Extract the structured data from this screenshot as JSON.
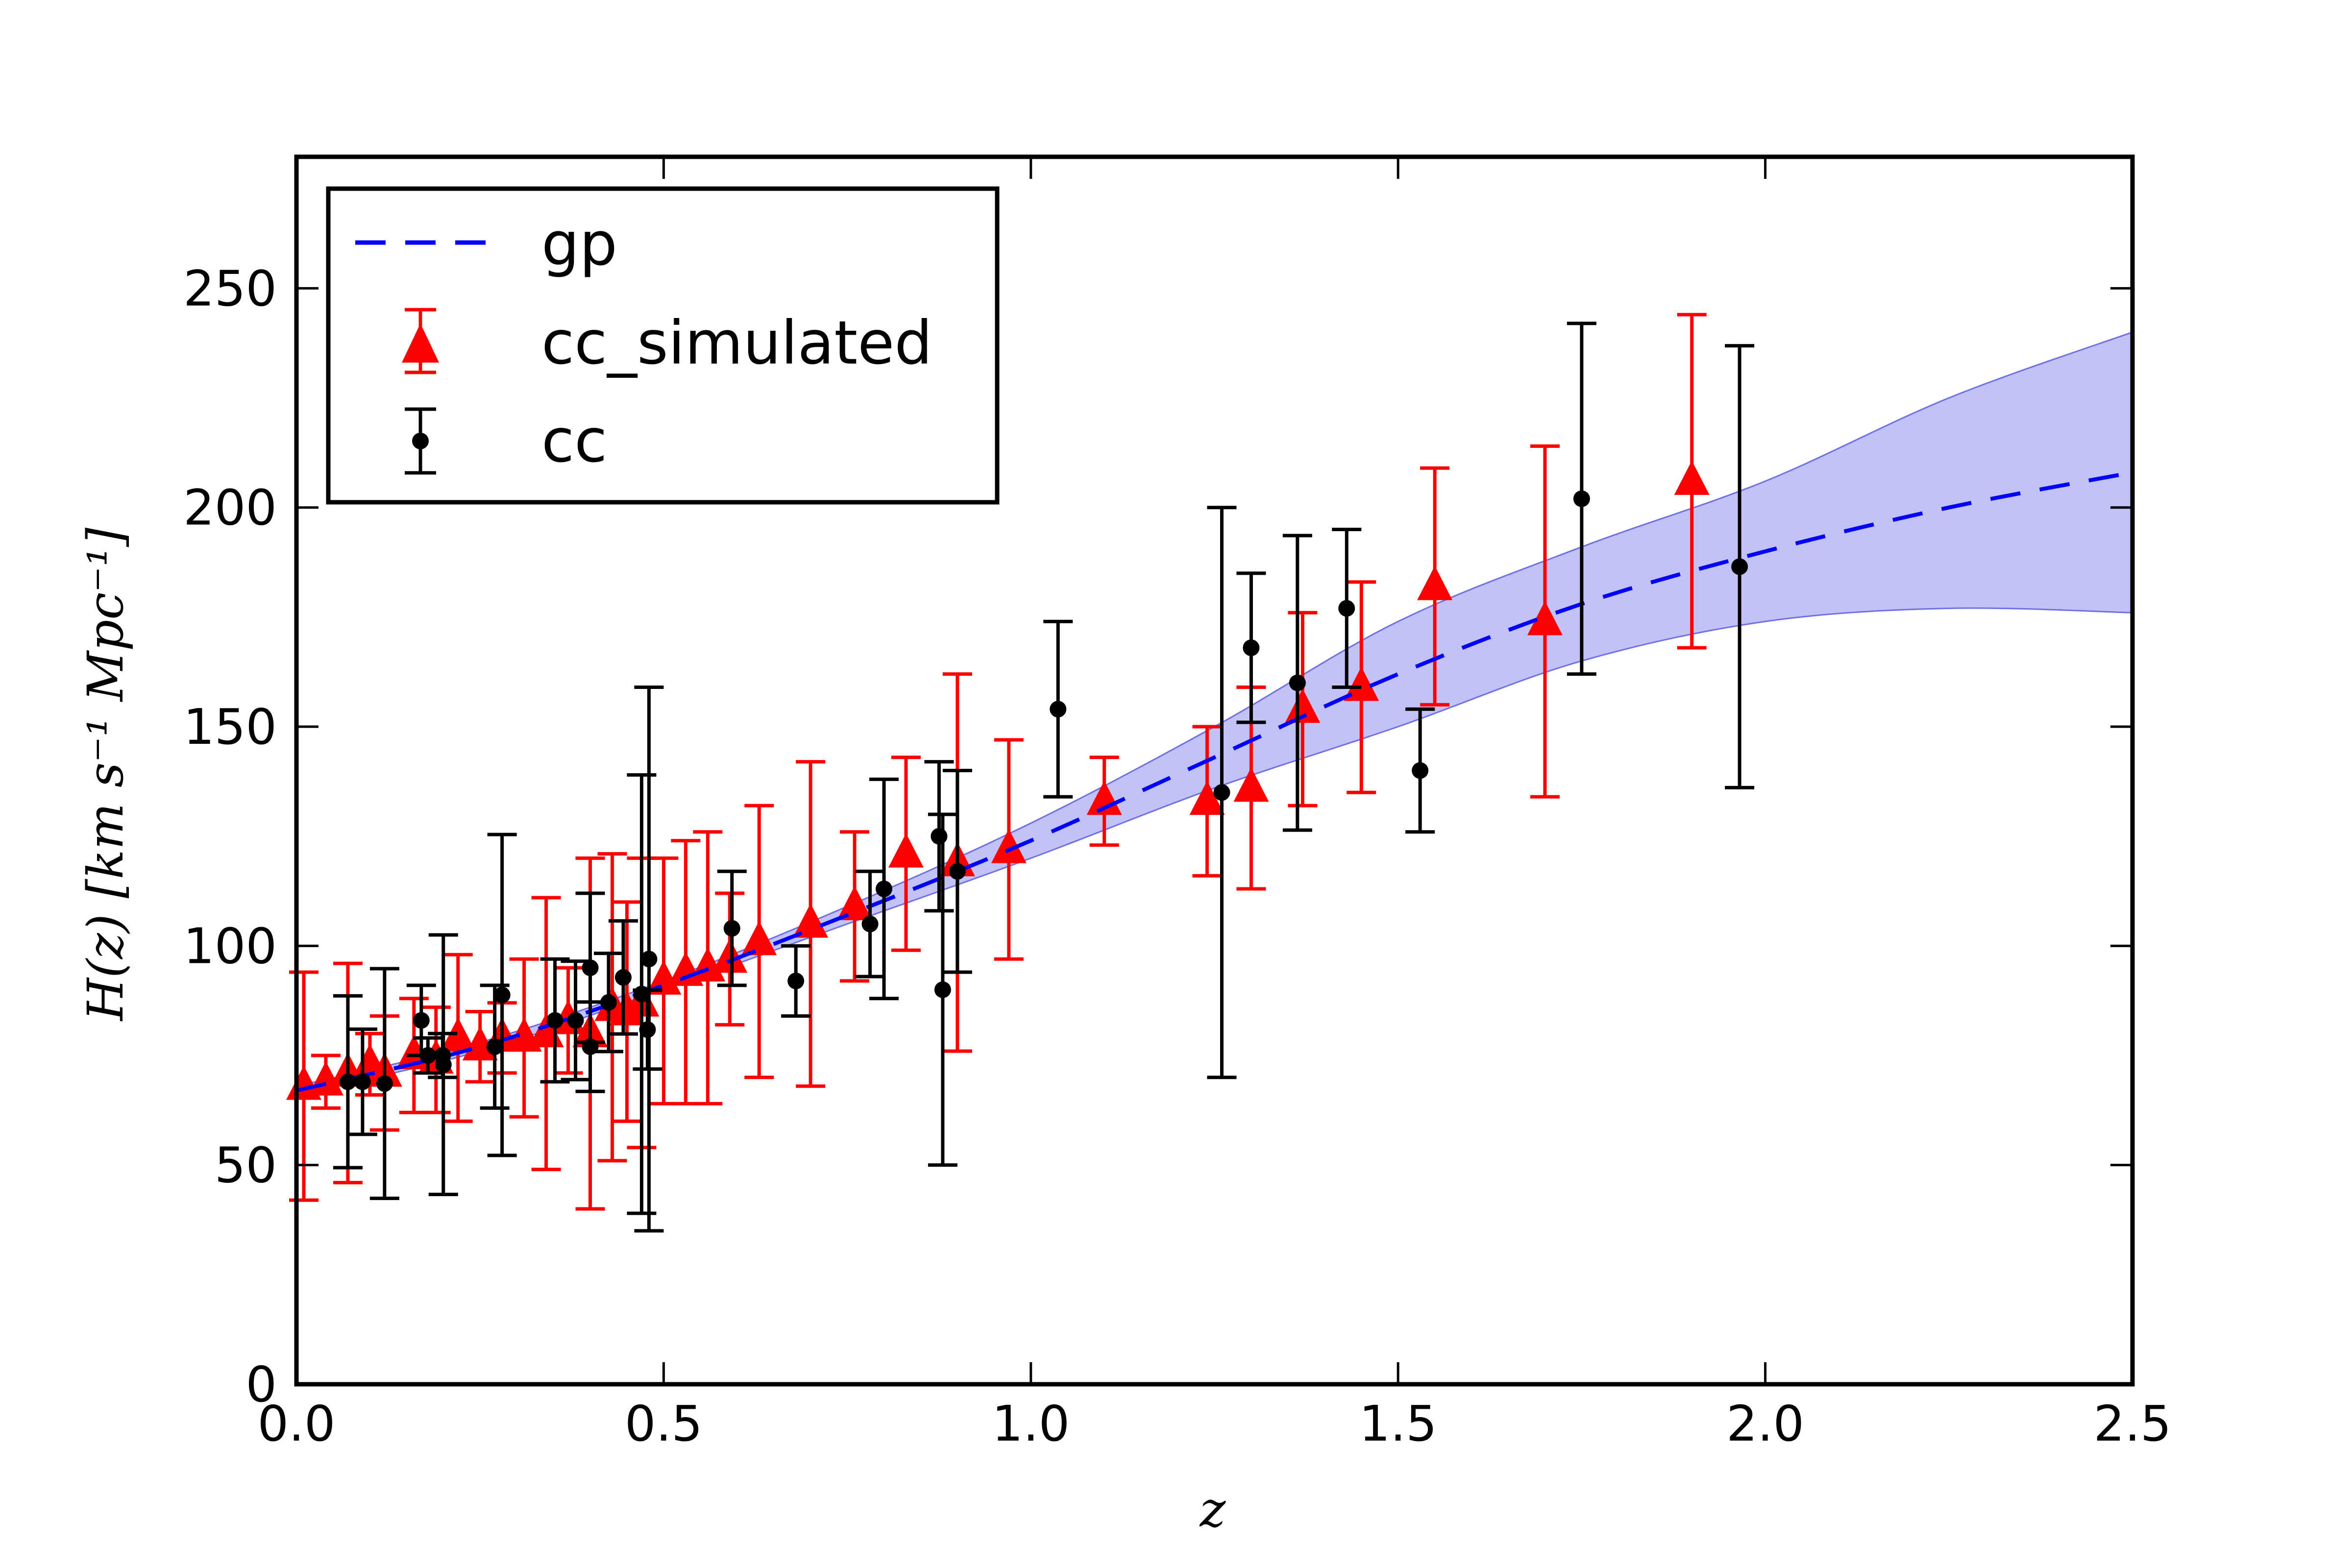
{
  "chart_data": {
    "type": "scatter",
    "xlabel": "z",
    "ylabel": "H(z) [km s⁻¹ Mpc⁻¹]",
    "xlim": [
      0,
      2.5
    ],
    "ylim": [
      0,
      280
    ],
    "x_ticks": [
      "0.0",
      "0.5",
      "1.0",
      "1.5",
      "2.0",
      "2.5"
    ],
    "y_ticks": [
      "0",
      "50",
      "100",
      "150",
      "200",
      "250"
    ],
    "legend_position": "top-left",
    "grid": false,
    "colors": {
      "gp": "#0000ff",
      "band": "#8f8fee",
      "cc_simulated": "#ff0000",
      "cc": "#000000"
    },
    "series": [
      {
        "name": "gp",
        "style": "dashed-line-with-band",
        "x": [
          0.0,
          0.25,
          0.5,
          0.75,
          1.0,
          1.25,
          1.5,
          1.75,
          2.0,
          2.25,
          2.5
        ],
        "y": [
          67,
          77,
          91,
          107,
          124,
          143,
          162,
          178,
          190,
          200,
          208
        ],
        "lower": [
          66,
          76,
          90,
          105,
          120,
          136,
          150,
          165,
          174,
          177,
          176
        ],
        "upper": [
          68,
          78,
          92,
          109,
          128,
          150,
          174,
          191,
          206,
          225,
          240
        ]
      },
      {
        "name": "cc_simulated",
        "style": "triangle-errorbar",
        "points": [
          {
            "x": 0.01,
            "y": 68,
            "err": 26
          },
          {
            "x": 0.04,
            "y": 69,
            "err": 6
          },
          {
            "x": 0.07,
            "y": 71,
            "err": 25
          },
          {
            "x": 0.1,
            "y": 73,
            "err": 7
          },
          {
            "x": 0.12,
            "y": 71,
            "err": 13
          },
          {
            "x": 0.16,
            "y": 75,
            "err": 13
          },
          {
            "x": 0.19,
            "y": 74,
            "err": 12
          },
          {
            "x": 0.22,
            "y": 79,
            "err": 19
          },
          {
            "x": 0.25,
            "y": 77,
            "err": 8
          },
          {
            "x": 0.28,
            "y": 79,
            "err": 8
          },
          {
            "x": 0.31,
            "y": 79,
            "err": 18
          },
          {
            "x": 0.34,
            "y": 80,
            "err": 31
          },
          {
            "x": 0.37,
            "y": 83,
            "err": 12
          },
          {
            "x": 0.4,
            "y": 80,
            "err": 40
          },
          {
            "x": 0.43,
            "y": 86,
            "err": 35
          },
          {
            "x": 0.45,
            "y": 85,
            "err": 25
          },
          {
            "x": 0.47,
            "y": 87,
            "err": 33
          },
          {
            "x": 0.5,
            "y": 92,
            "err": 28
          },
          {
            "x": 0.53,
            "y": 94,
            "err": 30
          },
          {
            "x": 0.56,
            "y": 95,
            "err": 31
          },
          {
            "x": 0.59,
            "y": 97,
            "err": 15
          },
          {
            "x": 0.63,
            "y": 101,
            "err": 31
          },
          {
            "x": 0.7,
            "y": 105,
            "err": 37
          },
          {
            "x": 0.76,
            "y": 109,
            "err": 17
          },
          {
            "x": 0.83,
            "y": 121,
            "err": 22
          },
          {
            "x": 0.9,
            "y": 119,
            "err": 43
          },
          {
            "x": 0.97,
            "y": 122,
            "err": 25
          },
          {
            "x": 1.1,
            "y": 133,
            "err": 10
          },
          {
            "x": 1.24,
            "y": 133,
            "err": 17
          },
          {
            "x": 1.3,
            "y": 136,
            "err": 23
          },
          {
            "x": 1.37,
            "y": 154,
            "err": 22
          },
          {
            "x": 1.45,
            "y": 159,
            "err": 24
          },
          {
            "x": 1.55,
            "y": 182,
            "err": 27
          },
          {
            "x": 1.7,
            "y": 174,
            "err": 40
          },
          {
            "x": 1.9,
            "y": 206,
            "err": 38
          }
        ]
      },
      {
        "name": "cc",
        "style": "dot-errorbar",
        "points": [
          {
            "x": 0.07,
            "y": 69,
            "err": 19.6
          },
          {
            "x": 0.09,
            "y": 69,
            "err": 12
          },
          {
            "x": 0.12,
            "y": 68.6,
            "err": 26.2
          },
          {
            "x": 0.17,
            "y": 83,
            "err": 8
          },
          {
            "x": 0.179,
            "y": 75,
            "err": 4
          },
          {
            "x": 0.199,
            "y": 75,
            "err": 5
          },
          {
            "x": 0.2,
            "y": 72.9,
            "err": 29.6
          },
          {
            "x": 0.27,
            "y": 77,
            "err": 14
          },
          {
            "x": 0.28,
            "y": 88.8,
            "err": 36.6
          },
          {
            "x": 0.352,
            "y": 83,
            "err": 14
          },
          {
            "x": 0.38,
            "y": 83,
            "err": 13.5
          },
          {
            "x": 0.4,
            "y": 95,
            "err": 17
          },
          {
            "x": 0.4,
            "y": 77,
            "err": 10.2
          },
          {
            "x": 0.425,
            "y": 87.1,
            "err": 11.2
          },
          {
            "x": 0.445,
            "y": 92.8,
            "err": 12.9
          },
          {
            "x": 0.47,
            "y": 89,
            "err": 50
          },
          {
            "x": 0.478,
            "y": 80.9,
            "err": 9
          },
          {
            "x": 0.48,
            "y": 97,
            "err": 62
          },
          {
            "x": 0.593,
            "y": 104,
            "err": 13
          },
          {
            "x": 0.68,
            "y": 92,
            "err": 8
          },
          {
            "x": 0.781,
            "y": 105,
            "err": 12
          },
          {
            "x": 0.8,
            "y": 113,
            "err": 25
          },
          {
            "x": 0.875,
            "y": 125,
            "err": 17
          },
          {
            "x": 0.88,
            "y": 90,
            "err": 40
          },
          {
            "x": 0.9,
            "y": 117,
            "err": 23
          },
          {
            "x": 1.037,
            "y": 154,
            "err": 20
          },
          {
            "x": 1.26,
            "y": 135,
            "err": 65
          },
          {
            "x": 1.3,
            "y": 168,
            "err": 17
          },
          {
            "x": 1.363,
            "y": 160,
            "err": 33.6
          },
          {
            "x": 1.43,
            "y": 177,
            "err": 18
          },
          {
            "x": 1.53,
            "y": 140,
            "err": 14
          },
          {
            "x": 1.75,
            "y": 202,
            "err": 40
          },
          {
            "x": 1.965,
            "y": 186.5,
            "err": 50.4
          }
        ]
      }
    ]
  }
}
